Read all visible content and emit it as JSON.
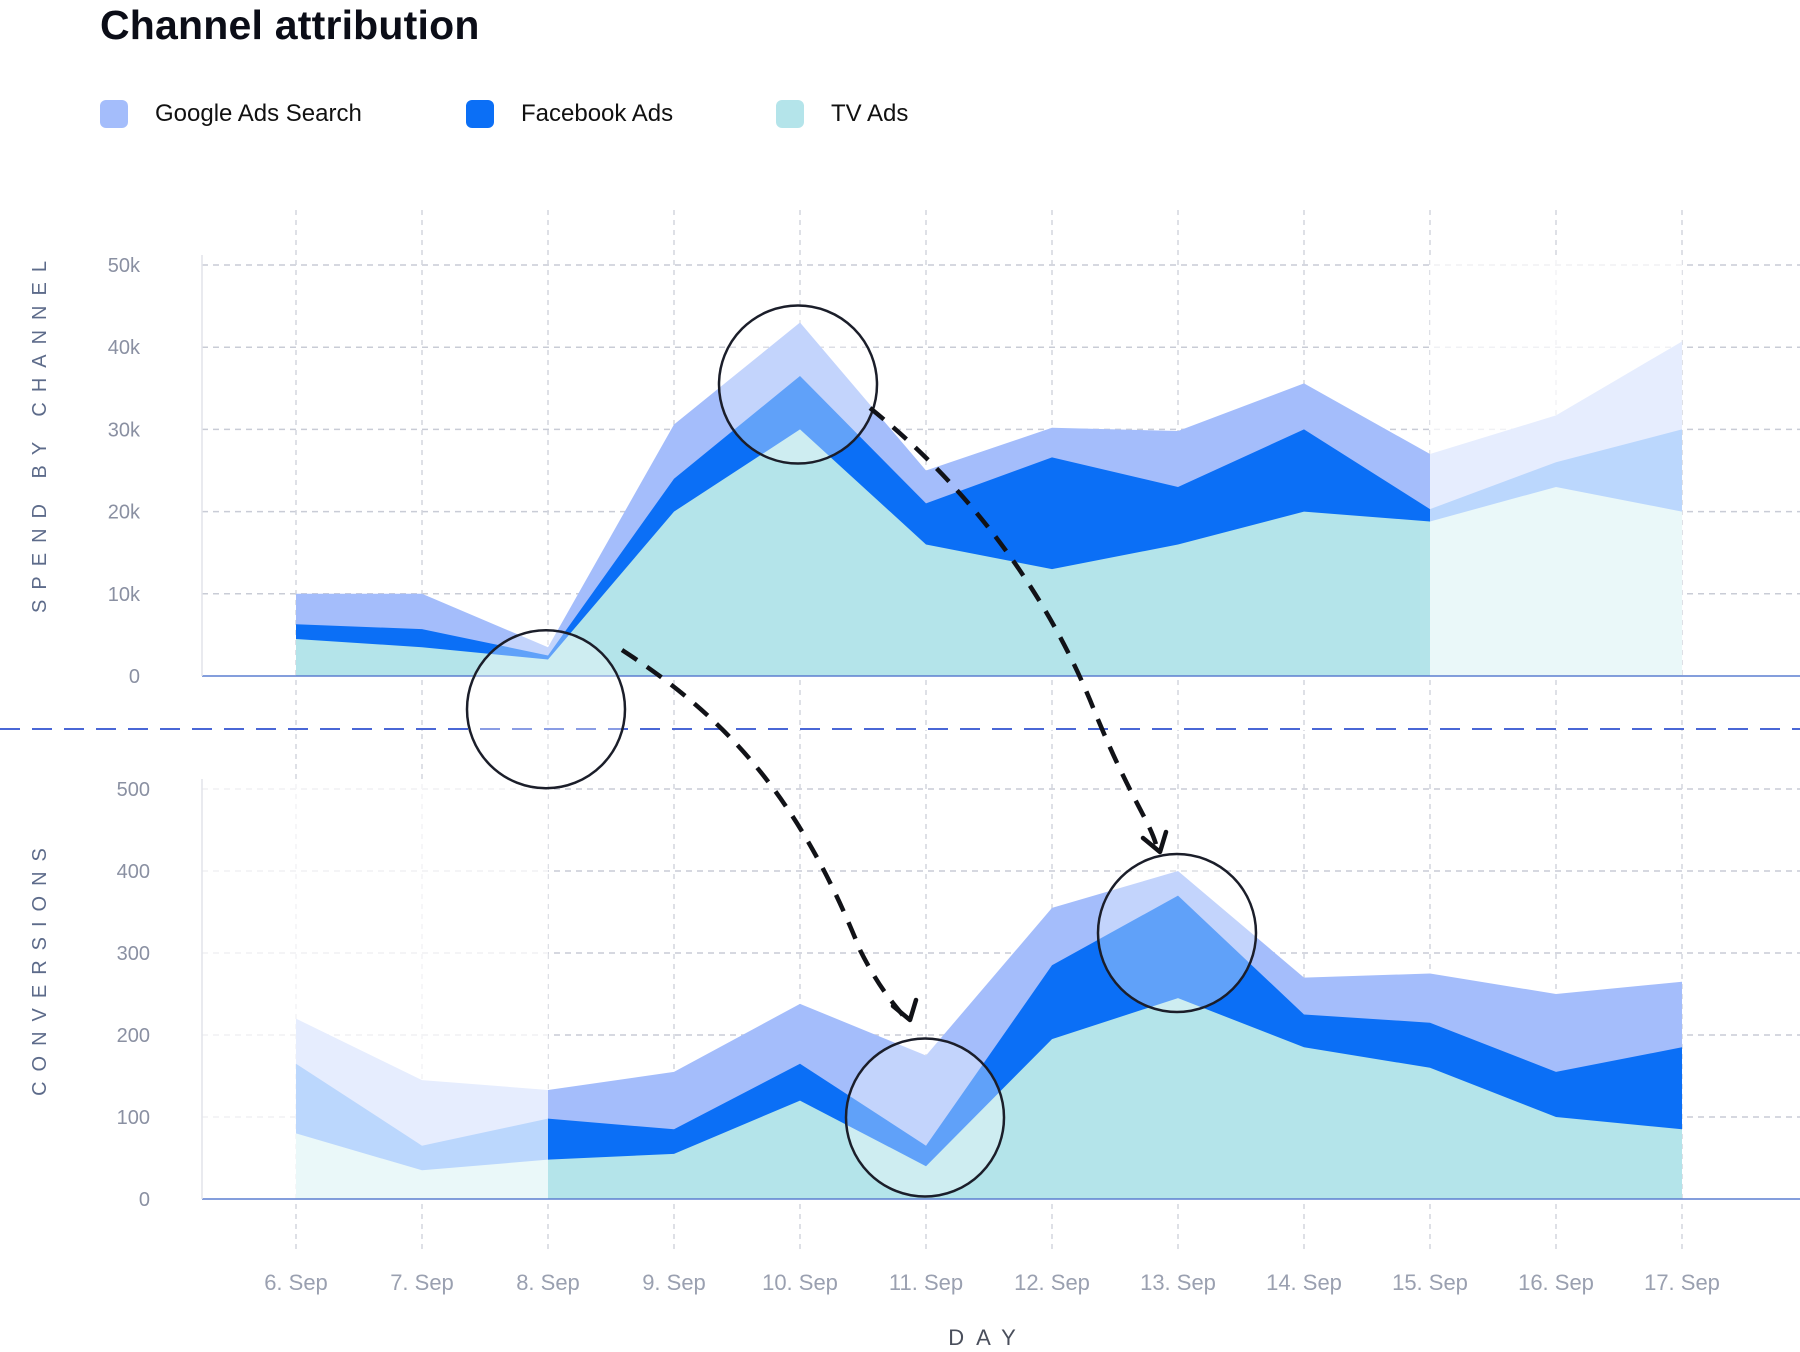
{
  "page": {
    "title": "Channel attribution"
  },
  "legend": [
    {
      "label": "Google Ads Search",
      "color": "#a4bdfb"
    },
    {
      "label": "Facebook Ads",
      "color": "#0b6ff6"
    },
    {
      "label": "TV Ads",
      "color": "#b4e4ea"
    }
  ],
  "chart_data": [
    {
      "type": "area",
      "stacked": true,
      "title": "Channel attribution",
      "xlabel": "DAY",
      "ylabel": "SPEND BY CHANNEL",
      "categories": [
        "6. Sep",
        "7. Sep",
        "8. Sep",
        "9. Sep",
        "10. Sep",
        "11. Sep",
        "12. Sep",
        "13. Sep",
        "14. Sep",
        "15. Sep",
        "16. Sep",
        "17. Sep"
      ],
      "yticks": [
        "0",
        "10k",
        "20k",
        "30k",
        "40k",
        "50k"
      ],
      "ylim": [
        0,
        50000
      ],
      "grid": true,
      "legend_position": "top",
      "series": [
        {
          "name": "TV Ads",
          "color": "#b4e4ea",
          "values": [
            4500,
            3500,
            2000,
            20000,
            30000,
            16000,
            13000,
            16000,
            20000,
            18800,
            23000,
            20000
          ]
        },
        {
          "name": "Facebook Ads",
          "color": "#0b6ff6",
          "values": [
            1800,
            2200,
            500,
            4000,
            6500,
            5000,
            13600,
            7000,
            10000,
            1500,
            3000,
            10000
          ]
        },
        {
          "name": "Google Ads Search",
          "color": "#a4bdfb",
          "values": [
            3700,
            4300,
            1000,
            6600,
            6500,
            4000,
            3600,
            6800,
            5600,
            6700,
            5700,
            10700
          ]
        }
      ],
      "faded_categories": [
        "15. Sep",
        "16. Sep",
        "17. Sep"
      ],
      "highlighted_categories": [
        "8. Sep",
        "10. Sep"
      ]
    },
    {
      "type": "area",
      "stacked": true,
      "xlabel": "DAY",
      "ylabel": "CONVERSIONS",
      "categories": [
        "6. Sep",
        "7. Sep",
        "8. Sep",
        "9. Sep",
        "10. Sep",
        "11. Sep",
        "12. Sep",
        "13. Sep",
        "14. Sep",
        "15. Sep",
        "16. Sep",
        "17. Sep"
      ],
      "yticks": [
        "0",
        "100",
        "200",
        "300",
        "400",
        "500"
      ],
      "ylim": [
        0,
        500
      ],
      "grid": true,
      "series": [
        {
          "name": "TV Ads",
          "color": "#b4e4ea",
          "values": [
            80,
            35,
            48,
            55,
            120,
            40,
            195,
            245,
            185,
            160,
            100,
            85
          ]
        },
        {
          "name": "Facebook Ads",
          "color": "#0b6ff6",
          "values": [
            85,
            30,
            50,
            30,
            45,
            25,
            90,
            125,
            40,
            55,
            55,
            100
          ]
        },
        {
          "name": "Google Ads Search",
          "color": "#a4bdfb",
          "values": [
            55,
            80,
            35,
            70,
            73,
            110,
            70,
            30,
            45,
            60,
            95,
            80
          ]
        }
      ],
      "faded_categories": [
        "6. Sep",
        "7. Sep"
      ],
      "highlighted_categories": [
        "11. Sep",
        "13. Sep"
      ]
    }
  ]
}
